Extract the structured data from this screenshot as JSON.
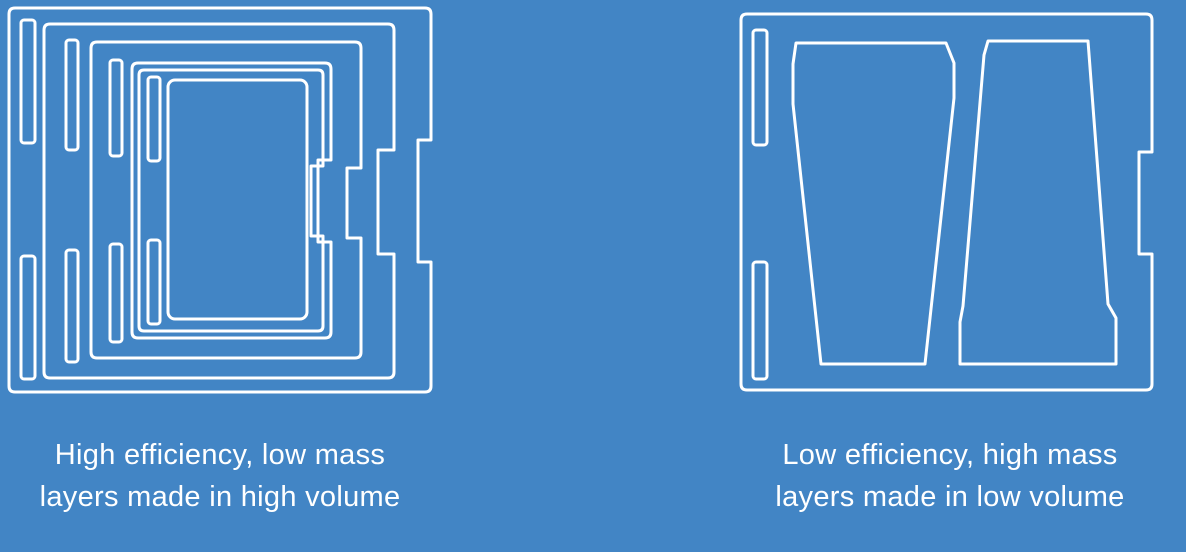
{
  "panels": [
    {
      "id": "high-efficiency",
      "caption_line1": "High efficiency, low mass",
      "caption_line2": "layers made in high volume"
    },
    {
      "id": "low-efficiency",
      "caption_line1": "Low efficiency, high mass",
      "caption_line2": "layers made in low volume"
    }
  ],
  "colors": {
    "background": "#4285c5",
    "stroke": "#ffffff",
    "text": "#ffffff"
  }
}
